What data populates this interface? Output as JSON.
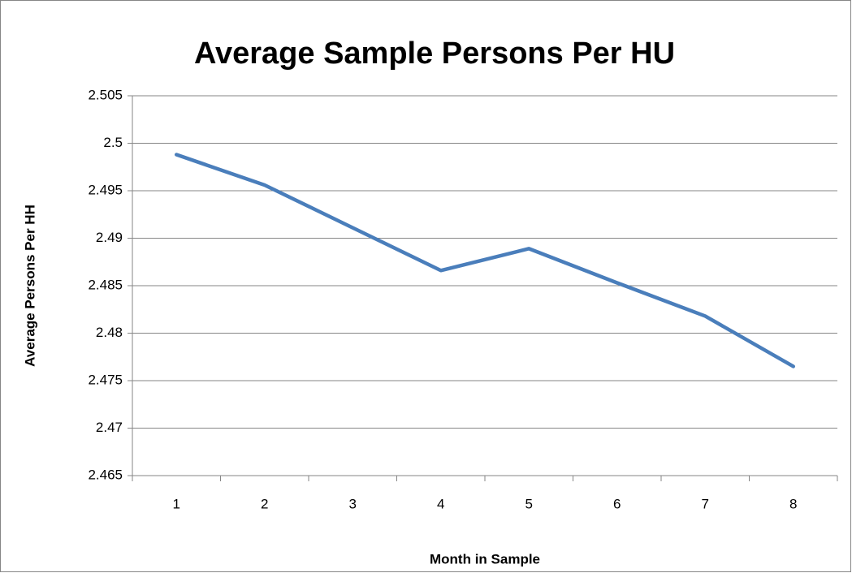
{
  "chart_data": {
    "type": "line",
    "title": "Average Sample Persons Per HU",
    "x_label": "Month in Sample",
    "y_label": "Average Persons Per HH",
    "categories": [
      "1",
      "2",
      "3",
      "4",
      "5",
      "6",
      "7",
      "8"
    ],
    "values": [
      2.4988,
      2.4956,
      2.4911,
      2.4866,
      2.4889,
      2.4853,
      2.4818,
      2.4765
    ],
    "color": "#4a7ebb",
    "ylim": [
      2.465,
      2.505
    ],
    "yticks": [
      2.465,
      2.47,
      2.475,
      2.48,
      2.485,
      2.49,
      2.495,
      2.5,
      2.505
    ],
    "grid": true
  }
}
